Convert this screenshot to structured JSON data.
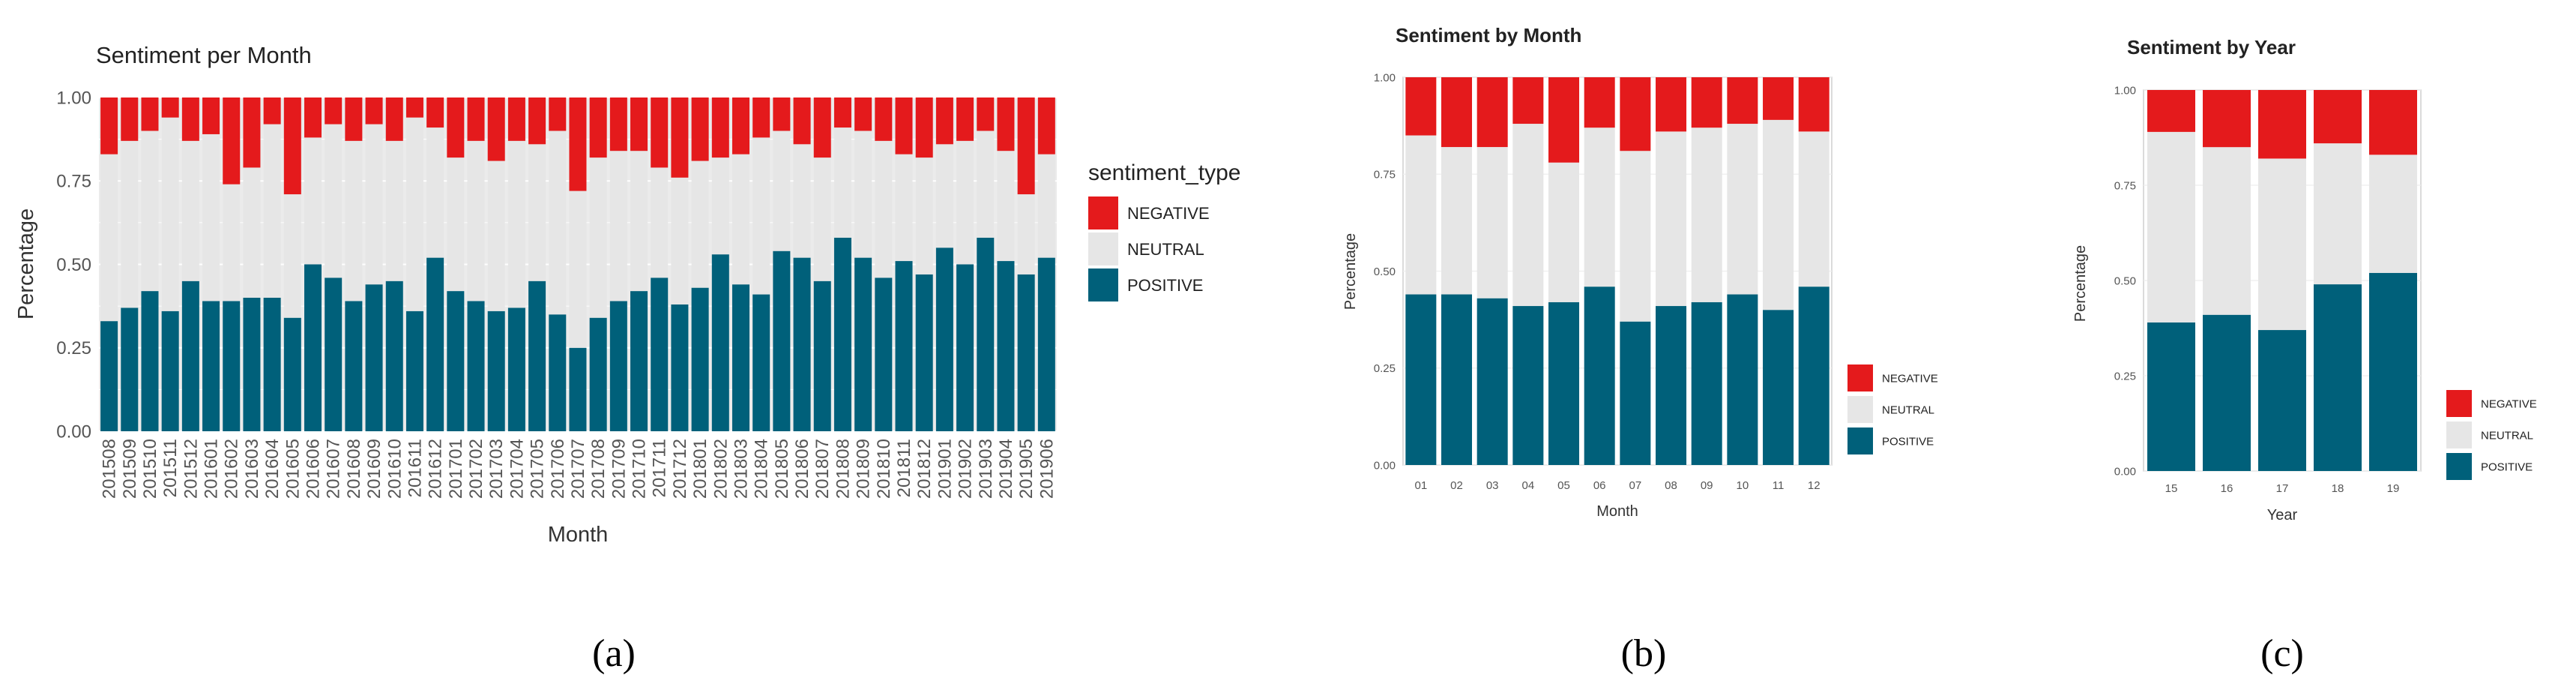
{
  "colors": {
    "negative": "#E41A1C",
    "neutral": "#E6E6E6",
    "positive": "#00607A",
    "panel_bg_a": "#EBEBEB",
    "panel_bg_bc": "#FFFFFF"
  },
  "chart_data": [
    {
      "type": "bar",
      "stacked": true,
      "title": "Sentiment per Month",
      "xlabel": "Month",
      "ylabel": "Percentage",
      "ylim": [
        0,
        1
      ],
      "yticks": [
        "0.00",
        "0.25",
        "0.50",
        "0.75",
        "1.00"
      ],
      "legend_title": "sentiment_type",
      "legend_position": "right",
      "panel_label": "(a)",
      "categories": [
        "201508",
        "201509",
        "201510",
        "201511",
        "201512",
        "201601",
        "201602",
        "201603",
        "201604",
        "201605",
        "201606",
        "201607",
        "201608",
        "201609",
        "201610",
        "201611",
        "201612",
        "201701",
        "201702",
        "201703",
        "201704",
        "201705",
        "201706",
        "201707",
        "201708",
        "201709",
        "201710",
        "201711",
        "201712",
        "201801",
        "201802",
        "201803",
        "201804",
        "201805",
        "201806",
        "201807",
        "201808",
        "201809",
        "201810",
        "201811",
        "201812",
        "201901",
        "201902",
        "201903",
        "201904",
        "201905",
        "201906"
      ],
      "series": [
        {
          "name": "POSITIVE",
          "values": [
            0.33,
            0.37,
            0.42,
            0.36,
            0.45,
            0.39,
            0.39,
            0.4,
            0.4,
            0.34,
            0.5,
            0.46,
            0.39,
            0.44,
            0.45,
            0.36,
            0.52,
            0.42,
            0.39,
            0.36,
            0.37,
            0.45,
            0.35,
            0.25,
            0.34,
            0.39,
            0.42,
            0.46,
            0.38,
            0.43,
            0.53,
            0.44,
            0.41,
            0.54,
            0.52,
            0.45,
            0.58,
            0.52,
            0.46,
            0.51,
            0.47,
            0.55,
            0.5,
            0.58,
            0.51,
            0.47,
            0.52
          ]
        },
        {
          "name": "NEUTRAL",
          "values": [
            0.5,
            0.5,
            0.48,
            0.58,
            0.42,
            0.5,
            0.35,
            0.39,
            0.52,
            0.37,
            0.38,
            0.46,
            0.48,
            0.48,
            0.42,
            0.58,
            0.39,
            0.4,
            0.48,
            0.45,
            0.5,
            0.41,
            0.55,
            0.47,
            0.48,
            0.45,
            0.42,
            0.33,
            0.38,
            0.38,
            0.29,
            0.39,
            0.47,
            0.36,
            0.34,
            0.37,
            0.33,
            0.38,
            0.41,
            0.32,
            0.35,
            0.31,
            0.37,
            0.32,
            0.33,
            0.24,
            0.31
          ]
        },
        {
          "name": "NEGATIVE",
          "values": [
            0.17,
            0.13,
            0.1,
            0.06,
            0.13,
            0.11,
            0.26,
            0.21,
            0.08,
            0.29,
            0.12,
            0.08,
            0.13,
            0.08,
            0.13,
            0.06,
            0.09,
            0.18,
            0.13,
            0.19,
            0.13,
            0.14,
            0.1,
            0.28,
            0.18,
            0.16,
            0.16,
            0.21,
            0.24,
            0.19,
            0.18,
            0.17,
            0.12,
            0.1,
            0.14,
            0.18,
            0.09,
            0.1,
            0.13,
            0.17,
            0.18,
            0.14,
            0.13,
            0.1,
            0.16,
            0.29,
            0.17
          ]
        }
      ]
    },
    {
      "type": "bar",
      "stacked": true,
      "title": "Sentiment by Month",
      "xlabel": "Month",
      "ylabel": "Percentage",
      "ylim": [
        0,
        1
      ],
      "yticks": [
        "0.00",
        "0.25",
        "0.50",
        "0.75",
        "1.00"
      ],
      "legend_position": "bottom-right",
      "panel_label": "(b)",
      "categories": [
        "01",
        "02",
        "03",
        "04",
        "05",
        "06",
        "07",
        "08",
        "09",
        "10",
        "11",
        "12"
      ],
      "series": [
        {
          "name": "POSITIVE",
          "values": [
            0.44,
            0.44,
            0.43,
            0.41,
            0.42,
            0.46,
            0.37,
            0.41,
            0.42,
            0.44,
            0.4,
            0.46
          ]
        },
        {
          "name": "NEUTRAL",
          "values": [
            0.41,
            0.38,
            0.39,
            0.47,
            0.36,
            0.41,
            0.44,
            0.45,
            0.45,
            0.44,
            0.49,
            0.4
          ]
        },
        {
          "name": "NEGATIVE",
          "values": [
            0.15,
            0.18,
            0.18,
            0.12,
            0.22,
            0.13,
            0.19,
            0.14,
            0.13,
            0.12,
            0.11,
            0.14
          ]
        }
      ]
    },
    {
      "type": "bar",
      "stacked": true,
      "title": "Sentiment by Year",
      "xlabel": "Year",
      "ylabel": "Percentage",
      "ylim": [
        0,
        1
      ],
      "yticks": [
        "0.00",
        "0.25",
        "0.50",
        "0.75",
        "1.00"
      ],
      "legend_position": "bottom-right",
      "panel_label": "(c)",
      "categories": [
        "15",
        "16",
        "17",
        "18",
        "19"
      ],
      "series": [
        {
          "name": "POSITIVE",
          "values": [
            0.39,
            0.41,
            0.37,
            0.49,
            0.52
          ]
        },
        {
          "name": "NEUTRAL",
          "values": [
            0.5,
            0.44,
            0.45,
            0.37,
            0.31
          ]
        },
        {
          "name": "NEGATIVE",
          "values": [
            0.11,
            0.15,
            0.18,
            0.14,
            0.17
          ]
        }
      ]
    }
  ]
}
